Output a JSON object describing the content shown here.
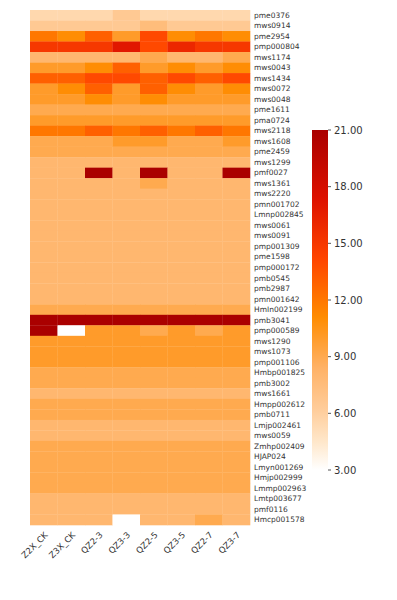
{
  "chart_data": {
    "type": "heatmap",
    "rows": [
      "pme0376",
      "mws0914",
      "pme2954",
      "pmp000804",
      "mws1174",
      "mws0043",
      "mws1434",
      "mws0072",
      "mws0048",
      "pme1611",
      "pma0724",
      "mws2118",
      "mws1608",
      "pme2459",
      "mws1299",
      "pmf0027",
      "mws1361",
      "mws2220",
      "pmn001702",
      "Lmnp002845",
      "mws0061",
      "mws0091",
      "pmp001309",
      "pme1598",
      "pmp000172",
      "pmb0545",
      "pmb2987",
      "pmn001642",
      "HmIn002199",
      "pmb3041",
      "pmp000589",
      "mws1290",
      "mws1073",
      "pmp001106",
      "Hmbp001825",
      "pmb3002",
      "mws1661",
      "Hmpp002612",
      "pmb0711",
      "Lmjp002461",
      "mws0059",
      "Zmhp002409",
      "HJAP024",
      "Lmyn001269",
      "Hmjp002999",
      "Lmmp002963",
      "Lmtp003677",
      "pmf0116",
      "Hmcp001578"
    ],
    "columns": [
      "Z2X_CK",
      "Z3X_CK",
      "QZ2-3",
      "QZ3-3",
      "QZ2-5",
      "QZ3-5",
      "QZ2-7",
      "QZ3-7"
    ],
    "colorbar_lim": [
      3,
      21
    ],
    "colorbar_ticks": [
      {
        "value": 3.0,
        "label": "3.00"
      },
      {
        "value": 6.0,
        "label": "6.00"
      },
      {
        "value": 9.0,
        "label": "9.00"
      },
      {
        "value": 12.0,
        "label": "12.00"
      },
      {
        "value": 15.0,
        "label": "15.00"
      },
      {
        "value": 18.0,
        "label": "18.00"
      },
      {
        "value": 21.0,
        "label": "21.00"
      }
    ],
    "values": [
      [
        5.5,
        5.5,
        5.5,
        6.5,
        5.5,
        5.5,
        5.5,
        5.5
      ],
      [
        6.5,
        6.5,
        6.5,
        6.5,
        7.5,
        6.5,
        6.5,
        6.5
      ],
      [
        12,
        11,
        13,
        10,
        14,
        11,
        12,
        11
      ],
      [
        15,
        15,
        15,
        17,
        14,
        16,
        15,
        15
      ],
      [
        8,
        8,
        8,
        8,
        9,
        8,
        8,
        9
      ],
      [
        10,
        10,
        11,
        13,
        10,
        11,
        10,
        11
      ],
      [
        13,
        13,
        14,
        14,
        13,
        14,
        13,
        14
      ],
      [
        10,
        11,
        13,
        10,
        13,
        11,
        10,
        11
      ],
      [
        10,
        10,
        11,
        10,
        11,
        10,
        10,
        10
      ],
      [
        9,
        9,
        9,
        9,
        9,
        9,
        9,
        9
      ],
      [
        10,
        10,
        10,
        10,
        10,
        10,
        10,
        10
      ],
      [
        12,
        12,
        13,
        12,
        13,
        12,
        13,
        12
      ],
      [
        9,
        9,
        9,
        10,
        10,
        9,
        9,
        10
      ],
      [
        9,
        9,
        9,
        9,
        9,
        9,
        9,
        9
      ],
      [
        8,
        8,
        8,
        8,
        8,
        8,
        8,
        8
      ],
      [
        8,
        8,
        21,
        8,
        21,
        8,
        8,
        21
      ],
      [
        8,
        8,
        8,
        8,
        9,
        8,
        8,
        8
      ],
      [
        8,
        8,
        8,
        8,
        8,
        8,
        8,
        8
      ],
      [
        8,
        8,
        8,
        8,
        8,
        8,
        8,
        8
      ],
      [
        8,
        8,
        8,
        8,
        8,
        8,
        8,
        8
      ],
      [
        8,
        8,
        8,
        8,
        8,
        8,
        8,
        8
      ],
      [
        8,
        8,
        8,
        8,
        8,
        8,
        8,
        8
      ],
      [
        8,
        8,
        8,
        8,
        8,
        8,
        8,
        8
      ],
      [
        8,
        8,
        8,
        8,
        8,
        8,
        8,
        8
      ],
      [
        8,
        8,
        8,
        8,
        8,
        8,
        8,
        8
      ],
      [
        8,
        8,
        8,
        8,
        8,
        8,
        8,
        8
      ],
      [
        8,
        8,
        8,
        8,
        8,
        8,
        8,
        8
      ],
      [
        8,
        8,
        8,
        8,
        8,
        8,
        8,
        8
      ],
      [
        9,
        9,
        9,
        9,
        9,
        9,
        9,
        9
      ],
      [
        21,
        21,
        21,
        21,
        21,
        21,
        21,
        21
      ],
      [
        21,
        3,
        10,
        10,
        9,
        10,
        9,
        10
      ],
      [
        10,
        10,
        10,
        10,
        10,
        10,
        10,
        10
      ],
      [
        10,
        10,
        10,
        10,
        10,
        10,
        10,
        10
      ],
      [
        10,
        10,
        10,
        10,
        10,
        10,
        10,
        10
      ],
      [
        9,
        9,
        9,
        9,
        9,
        9,
        9,
        9
      ],
      [
        9,
        9,
        9,
        9,
        9,
        9,
        9,
        9
      ],
      [
        8,
        8,
        8,
        8,
        8,
        8,
        8,
        8
      ],
      [
        9,
        9,
        9,
        9,
        9,
        9,
        9,
        9
      ],
      [
        9,
        9,
        9,
        9,
        9,
        9,
        9,
        9
      ],
      [
        8,
        8,
        8,
        8,
        8,
        8,
        8,
        8
      ],
      [
        8,
        8,
        8,
        8,
        8,
        8,
        8,
        8
      ],
      [
        9,
        9,
        9,
        9,
        9,
        9,
        9,
        9
      ],
      [
        9,
        9,
        9,
        9,
        9,
        9,
        9,
        9
      ],
      [
        9,
        9,
        9,
        9,
        9,
        9,
        9,
        9
      ],
      [
        9,
        9,
        9,
        9,
        9,
        9,
        9,
        9
      ],
      [
        9,
        9,
        9,
        9,
        9,
        9,
        9,
        9
      ],
      [
        8,
        8,
        8,
        8,
        8,
        8,
        8,
        8
      ],
      [
        8,
        8,
        8,
        8,
        8,
        8,
        8,
        8
      ],
      [
        8,
        8,
        8,
        3,
        8,
        8,
        9,
        8
      ]
    ]
  }
}
